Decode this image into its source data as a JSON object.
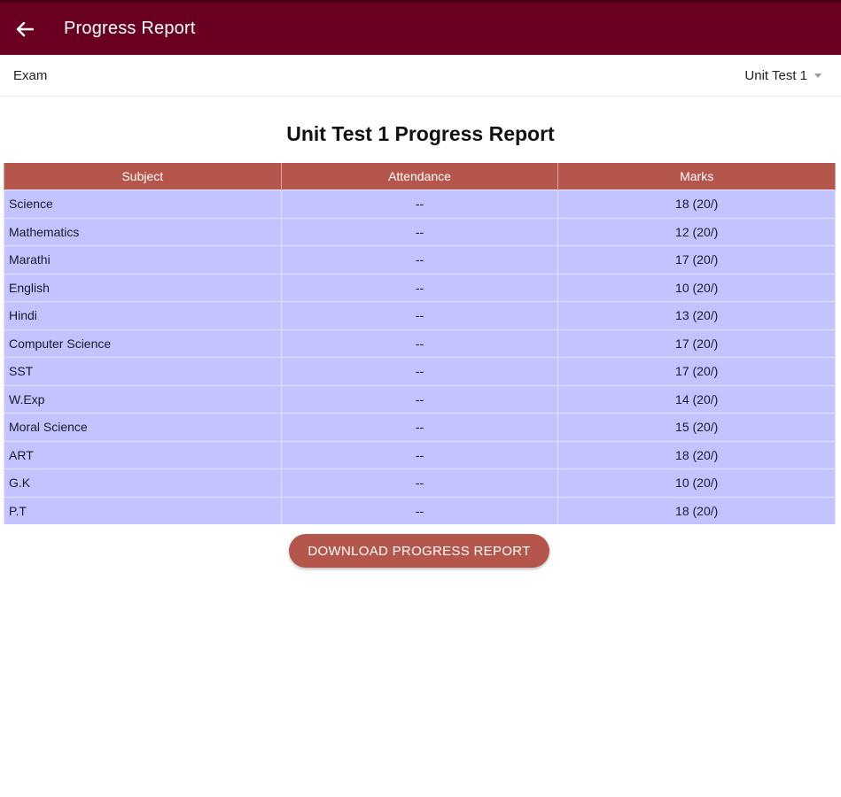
{
  "app_bar": {
    "title": "Progress Report",
    "background": "#6a0021"
  },
  "exam": {
    "label": "Exam",
    "selected": "Unit Test 1"
  },
  "report": {
    "title": "Unit Test 1 Progress Report",
    "headers": [
      "Subject",
      "Attendance",
      "Marks"
    ],
    "rows": [
      {
        "subject": "Science",
        "attendance": "--",
        "marks": "18 (20/)"
      },
      {
        "subject": "Mathematics",
        "attendance": "--",
        "marks": "12 (20/)"
      },
      {
        "subject": "Marathi",
        "attendance": "--",
        "marks": "17 (20/)"
      },
      {
        "subject": "English",
        "attendance": "--",
        "marks": "10 (20/)"
      },
      {
        "subject": "Hindi",
        "attendance": "--",
        "marks": "13 (20/)"
      },
      {
        "subject": "Computer Science",
        "attendance": "--",
        "marks": "17 (20/)"
      },
      {
        "subject": "SST",
        "attendance": "--",
        "marks": "17 (20/)"
      },
      {
        "subject": "W.Exp",
        "attendance": "--",
        "marks": "14 (20/)"
      },
      {
        "subject": "Moral Science",
        "attendance": "--",
        "marks": "15 (20/)"
      },
      {
        "subject": "ART",
        "attendance": "--",
        "marks": "18 (20/)"
      },
      {
        "subject": "G.K",
        "attendance": "--",
        "marks": "10 (20/)"
      },
      {
        "subject": "P.T",
        "attendance": "--",
        "marks": "18 (20/)"
      }
    ],
    "header_color": "#b5564c",
    "row_color": "#c3c3ff"
  },
  "actions": {
    "download_label": "DOWNLOAD PROGRESS REPORT"
  },
  "icons": {
    "back": "arrow-left-icon",
    "dropdown": "caret-down-icon"
  }
}
